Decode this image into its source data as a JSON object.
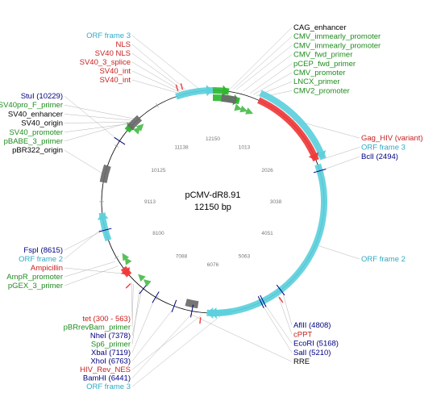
{
  "plasmid": {
    "name": "pCMV-dR8.91",
    "length": "12150 bp"
  },
  "colors": {
    "backbone": "#000000",
    "orf": "#5cd0dc",
    "gene": "#f03a3a",
    "promoter": "#2db830",
    "primer": "#58c058",
    "misc": "#6a6a6a",
    "enzyme": "#000080",
    "label_orf": "#2fa9c4",
    "label_gene": "#c81e1e",
    "label_promoter": "#1e8c1e",
    "label_enzyme": "#000080",
    "label_other": "#000000",
    "leader": "#b4b4b4"
  },
  "ticks": [
    "1013",
    "2026",
    "3038",
    "4051",
    "5063",
    "6076",
    "7088",
    "8100",
    "9113",
    "10125",
    "11138",
    "12150"
  ],
  "labels_top": [
    {
      "text": "ORF frame 3",
      "kind": "orf"
    },
    {
      "text": "NLS",
      "kind": "gene"
    },
    {
      "text": "SV40 NLS",
      "kind": "gene"
    },
    {
      "text": "SV40_3_splice",
      "kind": "gene"
    },
    {
      "text": "SV40_int",
      "kind": "gene"
    },
    {
      "text": "SV40_int",
      "kind": "gene"
    }
  ],
  "labels_top_right": [
    {
      "text": "CAG_enhancer",
      "kind": "other"
    },
    {
      "text": "CMV_immearly_promoter",
      "kind": "promoter"
    },
    {
      "text": "CMV_immearly_promoter",
      "kind": "promoter"
    },
    {
      "text": "CMV_fwd_primer",
      "kind": "promoter"
    },
    {
      "text": "pCEP_fwd_primer",
      "kind": "promoter"
    },
    {
      "text": "CMV_promoter",
      "kind": "promoter"
    },
    {
      "text": "LNCX_primer",
      "kind": "promoter"
    },
    {
      "text": "CMV2_promoter",
      "kind": "promoter"
    }
  ],
  "labels_left_upper": [
    {
      "text": "StuI (10229)",
      "kind": "enzyme"
    },
    {
      "text": "SV40pro_F_primer",
      "kind": "promoter"
    },
    {
      "text": "SV40_enhancer",
      "kind": "other"
    },
    {
      "text": "SV40_origin",
      "kind": "other"
    },
    {
      "text": "SV40_promoter",
      "kind": "promoter"
    },
    {
      "text": "pBABE_3_primer",
      "kind": "promoter"
    },
    {
      "text": "pBR322_origin",
      "kind": "other"
    }
  ],
  "labels_right_upper": [
    {
      "text": "Gag_HIV (variant)",
      "kind": "gene"
    },
    {
      "text": "ORF frame 3",
      "kind": "orf"
    },
    {
      "text": "BclI (2494)",
      "kind": "enzyme"
    }
  ],
  "labels_right_mid": [
    {
      "text": "ORF frame 2",
      "kind": "orf"
    }
  ],
  "labels_left_mid": [
    {
      "text": "FspI (8615)",
      "kind": "enzyme"
    },
    {
      "text": "ORF frame 2",
      "kind": "orf"
    },
    {
      "text": "Ampicillin",
      "kind": "gene"
    },
    {
      "text": "AmpR_promoter",
      "kind": "promoter"
    },
    {
      "text": "pGEX_3_primer",
      "kind": "promoter"
    }
  ],
  "labels_bottom_left": [
    {
      "text": "tet (300 - 563)",
      "kind": "gene"
    },
    {
      "text": "pBRrevBam_primer",
      "kind": "promoter"
    },
    {
      "text": "NheI (7378)",
      "kind": "enzyme"
    },
    {
      "text": "Sp6_primer",
      "kind": "promoter"
    },
    {
      "text": "XbaI (7119)",
      "kind": "enzyme"
    },
    {
      "text": "XhoI (6763)",
      "kind": "enzyme"
    },
    {
      "text": "HIV_Rev_NES",
      "kind": "gene"
    },
    {
      "text": "BamHI (6441)",
      "kind": "enzyme"
    },
    {
      "text": "ORF frame 3",
      "kind": "orf"
    }
  ],
  "labels_bottom_right": [
    {
      "text": "AflII (4808)",
      "kind": "enzyme"
    },
    {
      "text": "cPPT",
      "kind": "gene"
    },
    {
      "text": "EcoRI (5168)",
      "kind": "enzyme"
    },
    {
      "text": "SalI (5210)",
      "kind": "enzyme"
    },
    {
      "text": "RRE",
      "kind": "other"
    }
  ],
  "features": [
    {
      "name": "orf-frame-2-arc",
      "kind": "orf",
      "start": 2380,
      "end": 6180,
      "ring": 0,
      "dir": 1
    },
    {
      "name": "orf-frame-3-top-arc",
      "kind": "orf",
      "start": 11500,
      "end": 12150,
      "ring": 0,
      "dir": 1
    },
    {
      "name": "orf-frame-3-right-arc",
      "kind": "orf",
      "start": 800,
      "end": 2320,
      "ring": 1,
      "dir": 1
    },
    {
      "name": "orf-frame-2-left-arc",
      "kind": "orf",
      "start": 8430,
      "end": 8920,
      "ring": 0,
      "dir": 1
    },
    {
      "name": "orf-frame-3-bottom-arc",
      "kind": "orf",
      "start": 5750,
      "end": 6120,
      "ring": 0,
      "dir": 1
    },
    {
      "name": "gag-hiv-arc",
      "kind": "gene",
      "start": 820,
      "end": 2300,
      "ring": 0,
      "dir": 1
    },
    {
      "name": "ampicillin-arc",
      "kind": "gene",
      "start": 7720,
      "end": 7880,
      "ring": 0,
      "dir": -1
    },
    {
      "name": "cmv-promoter-arc",
      "kind": "promoter",
      "start": 12150,
      "end": 500,
      "ring": -1,
      "dir": 1
    },
    {
      "name": "cmv-promoter-arc-2",
      "kind": "promoter",
      "start": 12150,
      "end": 280,
      "ring": 0,
      "dir": 1
    },
    {
      "name": "sv40-promoter-arc",
      "kind": "promoter",
      "start": 10450,
      "end": 10580,
      "ring": 0,
      "dir": -1
    },
    {
      "name": "pbr322-origin-block",
      "kind": "misc",
      "start": 9450,
      "end": 9750,
      "ring": 0,
      "dir": 0
    },
    {
      "name": "sv40-origin-block",
      "kind": "misc",
      "start": 10520,
      "end": 10760,
      "ring": 0,
      "dir": 0
    },
    {
      "name": "cag-enhancer-block",
      "kind": "misc",
      "start": 160,
      "end": 440,
      "ring": -1,
      "dir": 0
    },
    {
      "name": "rre-block",
      "kind": "misc",
      "start": 6350,
      "end": 6580,
      "ring": -1,
      "dir": 0
    }
  ],
  "primers": [
    {
      "name": "cmv-fwd-primer-mark",
      "pos": 520,
      "ring": -2
    },
    {
      "name": "pcep-fwd-primer-mark",
      "pos": 640,
      "ring": -2
    },
    {
      "name": "lncx-primer-mark",
      "pos": 760,
      "ring": -2
    },
    {
      "name": "pbabe-3-primer-mark",
      "pos": 10600,
      "ring": -1
    },
    {
      "name": "sv40pro-f-primer-mark",
      "pos": 10680,
      "ring": -1
    },
    {
      "name": "ampr-promoter-mark",
      "pos": 8050,
      "ring": -1
    },
    {
      "name": "pgex-3-primer-mark",
      "pos": 7960,
      "ring": -1
    },
    {
      "name": "pbrrevbam-primer-mark",
      "pos": 7560,
      "ring": -1
    },
    {
      "name": "sp6-primer-mark",
      "pos": 7420,
      "ring": -1
    }
  ],
  "sites": [
    {
      "name": "stui-site",
      "pos": 10229
    },
    {
      "name": "bcli-site",
      "pos": 2494
    },
    {
      "name": "fspi-site",
      "pos": 8615
    },
    {
      "name": "nhei-site",
      "pos": 7378
    },
    {
      "name": "xbai-site",
      "pos": 7119
    },
    {
      "name": "xhoi-site",
      "pos": 6763
    },
    {
      "name": "bamhi-site",
      "pos": 6441
    },
    {
      "name": "aflii-site",
      "pos": 4808
    },
    {
      "name": "ecori-site",
      "pos": 5168
    },
    {
      "name": "sali-site",
      "pos": 5210
    }
  ],
  "small_marks": [
    {
      "name": "nls-mark",
      "pos": 11640,
      "kind": "gene"
    },
    {
      "name": "sv40-int-mark",
      "pos": 11560,
      "kind": "gene"
    },
    {
      "name": "hiv-rev-nes-mark",
      "pos": 6280,
      "kind": "gene"
    },
    {
      "name": "cppt-mark",
      "pos": 4900,
      "kind": "gene"
    },
    {
      "name": "tet-mark",
      "pos": 7600,
      "kind": "gene"
    }
  ]
}
